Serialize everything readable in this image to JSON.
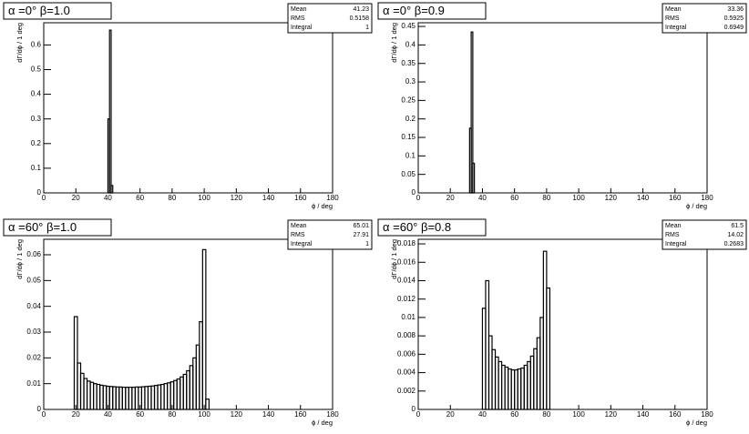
{
  "chart_data": [
    {
      "type": "histogram",
      "title": "α =0° β=1.0",
      "x_label": "ϕ / deg",
      "y_label": "dΓ/dϕ / 1 deg",
      "bins": [
        40,
        41,
        42,
        43
      ],
      "counts": [
        0.3,
        0.66,
        0.03
      ],
      "color": "#000000",
      "xlim": [
        0,
        180
      ],
      "xticks": [
        0,
        20,
        40,
        60,
        80,
        100,
        120,
        140,
        160,
        180
      ],
      "ylim": [
        0,
        0.69
      ],
      "yticks": [
        0,
        0.1,
        0.2,
        0.3,
        0.4,
        0.5,
        0.6
      ],
      "stats": [
        {
          "label": "Mean",
          "value": 41.23
        },
        {
          "label": "RMS",
          "value": 0.5158
        },
        {
          "label": "Integral",
          "value": 1
        }
      ]
    },
    {
      "type": "histogram",
      "title": "α =0° β=0.9",
      "x_label": "ϕ / deg",
      "y_label": "dΓ/dϕ / 1 deg",
      "bins": [
        32,
        33,
        34,
        35
      ],
      "counts": [
        0.175,
        0.435,
        0.08
      ],
      "color": "#000000",
      "xlim": [
        0,
        180
      ],
      "xticks": [
        0,
        20,
        40,
        60,
        80,
        100,
        120,
        140,
        160,
        180
      ],
      "ylim": [
        0,
        0.46
      ],
      "yticks": [
        0,
        0.05,
        0.1,
        0.15,
        0.2,
        0.25,
        0.3,
        0.35,
        0.4,
        0.45
      ],
      "stats": [
        {
          "label": "Mean",
          "value": 33.36
        },
        {
          "label": "RMS",
          "value": 0.5925
        },
        {
          "label": "Integral",
          "value": 0.6949
        }
      ]
    },
    {
      "type": "histogram",
      "title": "α =60° β=1.0",
      "x_label": "ϕ / deg",
      "y_label": "dΓ/dϕ / 1 deg",
      "bins": [
        19,
        21,
        23,
        25,
        27,
        29,
        31,
        33,
        35,
        37,
        39,
        41,
        43,
        45,
        47,
        49,
        51,
        53,
        55,
        57,
        59,
        61,
        63,
        65,
        67,
        69,
        71,
        73,
        75,
        77,
        79,
        81,
        83,
        85,
        87,
        89,
        91,
        93,
        95,
        97,
        99,
        101,
        103
      ],
      "counts": [
        0.036,
        0.018,
        0.014,
        0.012,
        0.011,
        0.0105,
        0.01,
        0.0097,
        0.0094,
        0.0092,
        0.009,
        0.0089,
        0.0088,
        0.0087,
        0.0087,
        0.0086,
        0.0086,
        0.0086,
        0.0086,
        0.0087,
        0.0087,
        0.0088,
        0.0089,
        0.009,
        0.0091,
        0.0093,
        0.0095,
        0.0097,
        0.01,
        0.0103,
        0.0107,
        0.0112,
        0.0118,
        0.0126,
        0.0136,
        0.015,
        0.017,
        0.02,
        0.025,
        0.034,
        0.062,
        0.004
      ],
      "color": "#000000",
      "xlim": [
        0,
        180
      ],
      "xticks": [
        0,
        20,
        40,
        60,
        80,
        100,
        120,
        140,
        160,
        180
      ],
      "ylim": [
        0,
        0.066
      ],
      "yticks": [
        0,
        0.01,
        0.02,
        0.03,
        0.04,
        0.05,
        0.06
      ],
      "stats": [
        {
          "label": "Mean",
          "value": 65.01
        },
        {
          "label": "RMS",
          "value": 27.91
        },
        {
          "label": "Integral",
          "value": 1
        }
      ]
    },
    {
      "type": "histogram",
      "title": "α =60° β=0.8",
      "x_label": "ϕ / deg",
      "y_label": "dΓ/dϕ / 1 deg",
      "bins": [
        40,
        42,
        44,
        46,
        48,
        50,
        52,
        54,
        56,
        58,
        60,
        62,
        64,
        66,
        68,
        70,
        72,
        74,
        76,
        78,
        80,
        82
      ],
      "counts": [
        0.011,
        0.014,
        0.008,
        0.0065,
        0.0057,
        0.0052,
        0.0048,
        0.0046,
        0.0044,
        0.0043,
        0.0043,
        0.0044,
        0.0045,
        0.0048,
        0.0052,
        0.0058,
        0.0066,
        0.0078,
        0.01,
        0.0172,
        0.0132
      ],
      "color": "#000000",
      "xlim": [
        0,
        180
      ],
      "xticks": [
        0,
        20,
        40,
        60,
        80,
        100,
        120,
        140,
        160,
        180
      ],
      "ylim": [
        0,
        0.0185
      ],
      "yticks": [
        0,
        0.002,
        0.004,
        0.006,
        0.008,
        0.01,
        0.012,
        0.014,
        0.016,
        0.018
      ],
      "stats": [
        {
          "label": "Mean",
          "value": 61.5
        },
        {
          "label": "RMS",
          "value": 14.02
        },
        {
          "label": "Integral",
          "value": 0.2683
        }
      ]
    }
  ]
}
